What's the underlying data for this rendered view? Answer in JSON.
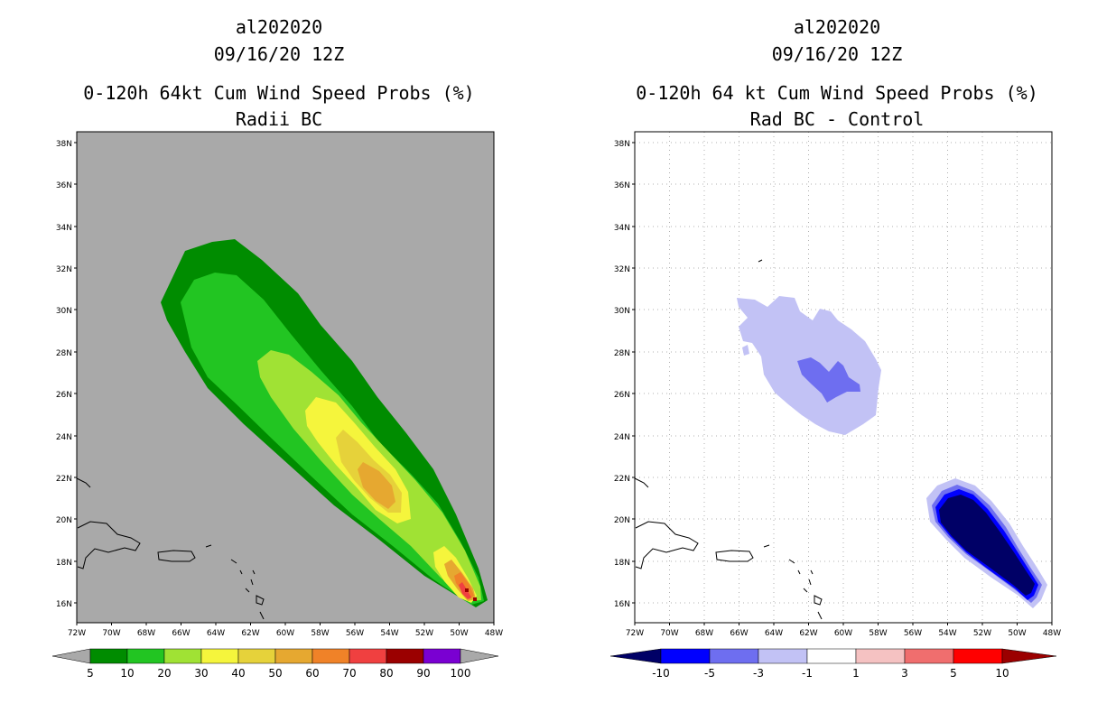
{
  "left_panel": {
    "storm_id": "al202020",
    "date": "09/16/20 12Z",
    "title": "0-120h 64kt Cum Wind Speed Probs (%)",
    "subtitle": "Radii BC",
    "background_color": "#a9a9a9",
    "colorbar_labels": [
      "5",
      "10",
      "20",
      "30",
      "40",
      "50",
      "60",
      "70",
      "80",
      "90",
      "100"
    ],
    "colorbar_colors": [
      "#008c00",
      "#22c522",
      "#a0e234",
      "#f5f53c",
      "#e6d23a",
      "#e6a830",
      "#f08228",
      "#f04040",
      "#9b0000",
      "#7a00d2"
    ]
  },
  "right_panel": {
    "storm_id": "al202020",
    "date": "09/16/20 12Z",
    "title": "0-120h 64 kt Cum Wind Speed Probs (%)",
    "subtitle": "Rad BC - Control",
    "background_color": "#ffffff",
    "colorbar_labels": [
      "-10",
      "-5",
      "-3",
      "-1",
      "1",
      "3",
      "5",
      "10"
    ],
    "colorbar_colors": [
      "#000066",
      "#0000ff",
      "#6e6ef0",
      "#c2c2f5",
      "#ffffff",
      "#f5c2c2",
      "#f06e6e",
      "#ff0000",
      "#9b0000"
    ]
  },
  "axes": {
    "lat_labels": [
      "38N",
      "36N",
      "34N",
      "32N",
      "30N",
      "28N",
      "26N",
      "24N",
      "22N",
      "20N",
      "18N",
      "16N"
    ],
    "lon_labels": [
      "72W",
      "70W",
      "68W",
      "66W",
      "64W",
      "62W",
      "60W",
      "58W",
      "56W",
      "54W",
      "52W",
      "50W",
      "48W"
    ]
  },
  "legend_colors": {
    "c5": "#008c00",
    "c10": "#22c522",
    "c20": "#a0e234",
    "c30": "#f5f53c",
    "c40": "#e6d23a",
    "c50": "#e6a830",
    "c60": "#f08228",
    "c70": "#f04040",
    "dm10": "#000066",
    "dm5": "#0000ff",
    "dm3": "#6e6ef0",
    "dm1": "#c2c2f5"
  }
}
